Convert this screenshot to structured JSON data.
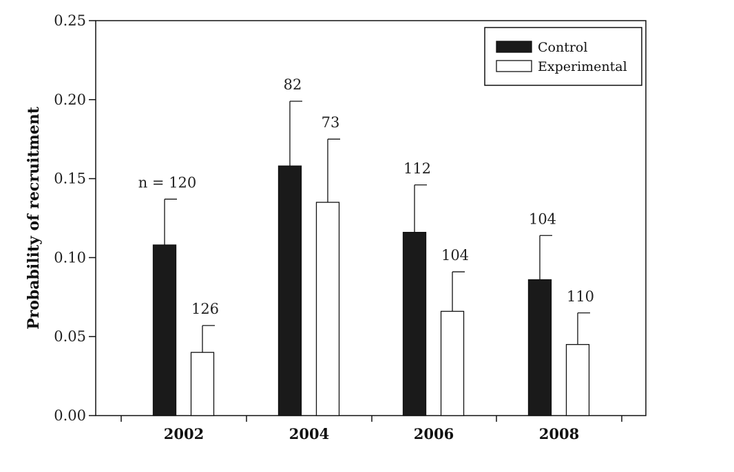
{
  "chart_data": {
    "type": "bar",
    "title": "",
    "xlabel": "",
    "ylabel": "Probability of recruitment",
    "ylim": [
      0,
      0.25
    ],
    "yticks": [
      "0.00",
      "0.05",
      "0.10",
      "0.15",
      "0.20",
      "0.25"
    ],
    "categories": [
      "2002",
      "2004",
      "2006",
      "2008"
    ],
    "legend_position": "top-right",
    "grid": false,
    "series": [
      {
        "name": "Control",
        "color": "#1a1a1a",
        "values": [
          0.108,
          0.158,
          0.116,
          0.086
        ],
        "error": [
          0.029,
          0.041,
          0.03,
          0.028
        ],
        "n_labels": [
          "n = 120",
          "82",
          "112",
          "104"
        ]
      },
      {
        "name": "Experimental",
        "color": "#ffffff",
        "values": [
          0.04,
          0.135,
          0.066,
          0.045
        ],
        "error": [
          0.017,
          0.04,
          0.025,
          0.02
        ],
        "n_labels": [
          "126",
          "73",
          "104",
          "110"
        ]
      }
    ]
  }
}
